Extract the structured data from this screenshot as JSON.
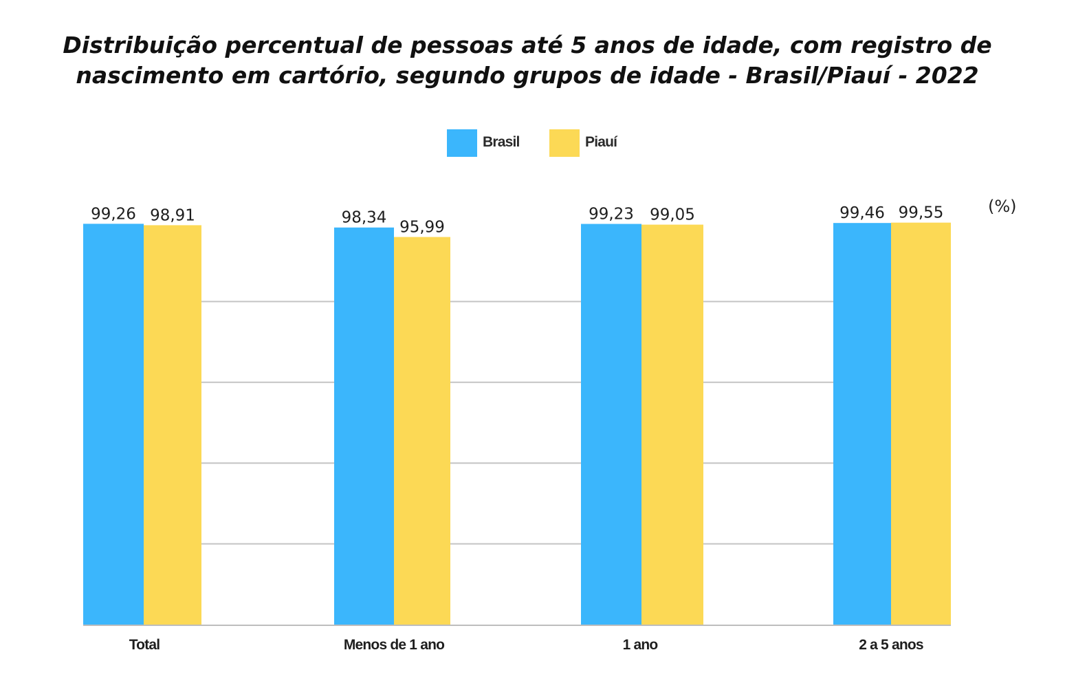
{
  "chart_data": {
    "type": "bar",
    "title_lines": [
      "Distribuição percentual de pessoas até 5 anos de idade, com registro de",
      "nascimento em cartório, segundo grupos de idade - Brasil/Piauí - 2022"
    ],
    "unit_label": "(%)",
    "categories": [
      "Total",
      "Menos de 1 ano",
      "1 ano",
      "2 a 5 anos"
    ],
    "series": [
      {
        "name": "Brasil",
        "color": "#3bb6fc",
        "values": [
          99.26,
          98.34,
          99.23,
          99.46
        ],
        "value_labels": [
          "99,26",
          "98,34",
          "99,23",
          "99,46"
        ]
      },
      {
        "name": "Piauí",
        "color": "#fcd955",
        "values": [
          98.91,
          95.99,
          99.05,
          99.55
        ],
        "value_labels": [
          "98,91",
          "95,99",
          "99,05",
          "99,55"
        ]
      }
    ],
    "legend_position": "top-center",
    "grid": true,
    "ylim": [
      0,
      100
    ]
  }
}
